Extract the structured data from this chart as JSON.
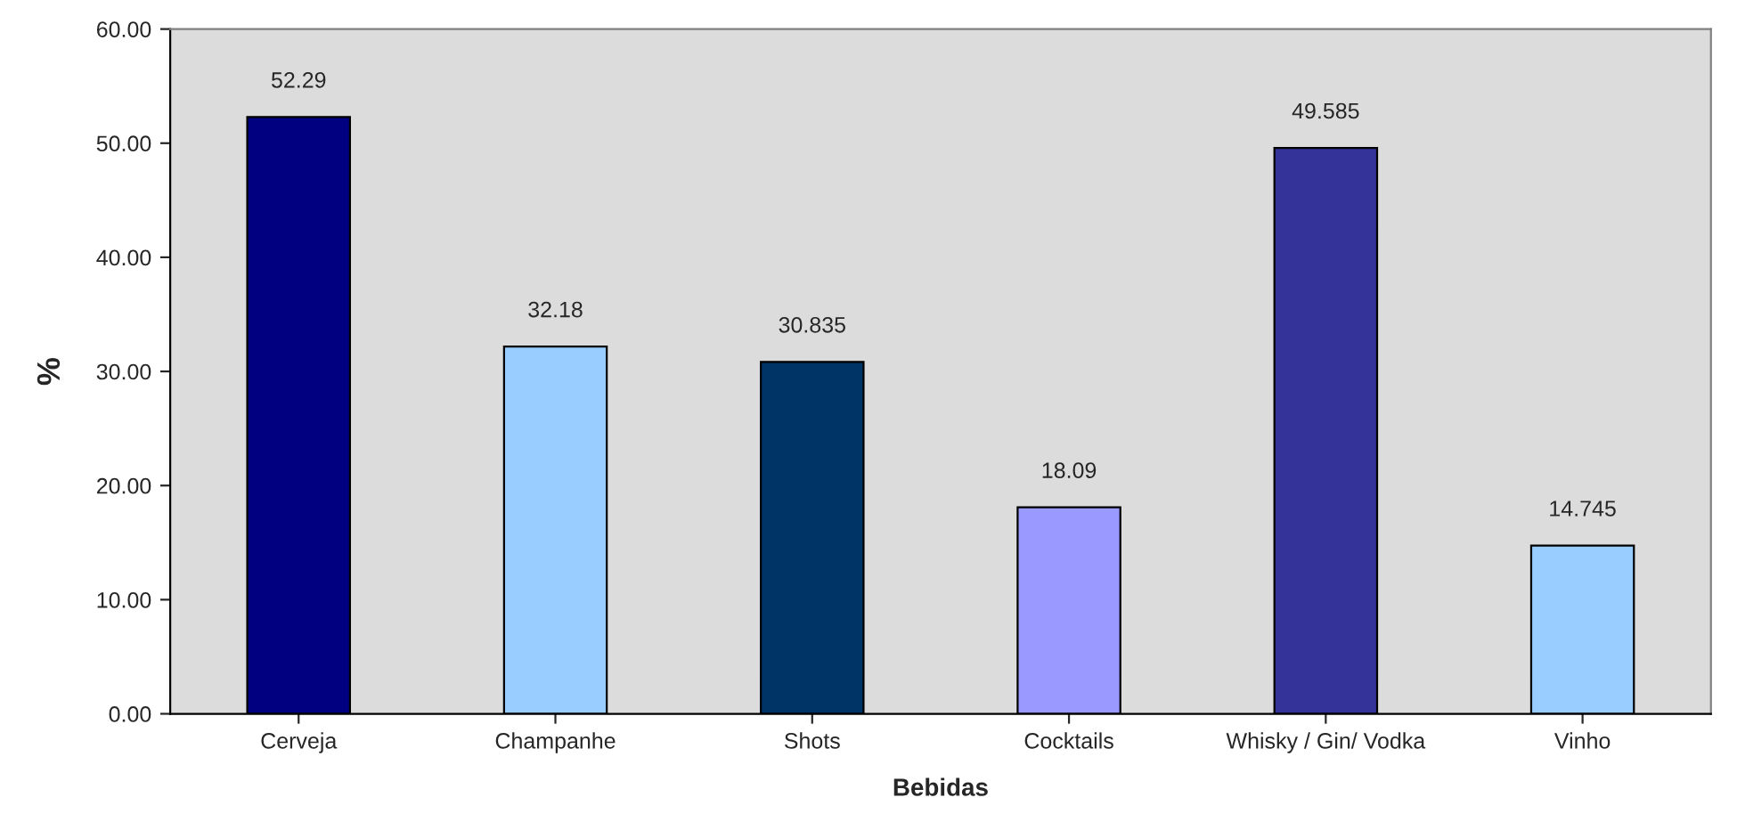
{
  "chart_data": {
    "type": "bar",
    "xlabel": "Bebidas",
    "ylabel": "%",
    "categories": [
      "Cerveja",
      "Champanhe",
      "Shots",
      "Cocktails",
      "Whisky / Gin/ Vodka",
      "Vinho"
    ],
    "values": [
      52.29,
      32.18,
      30.835,
      18.09,
      49.585,
      14.745
    ],
    "colors": [
      "#000080",
      "#99ccff",
      "#003366",
      "#9999ff",
      "#333399",
      "#99ccff"
    ],
    "ylim": [
      0,
      60
    ],
    "yticks": [
      {
        "value": 0,
        "label": "0.00"
      },
      {
        "value": 10,
        "label": "10.00"
      },
      {
        "value": 20,
        "label": "20.00"
      },
      {
        "value": 30,
        "label": "30.00"
      },
      {
        "value": 40,
        "label": "40.00"
      },
      {
        "value": 50,
        "label": "50.00"
      },
      {
        "value": 60,
        "label": "60.00"
      }
    ],
    "data_labels": true,
    "grid": false,
    "legend": false
  }
}
